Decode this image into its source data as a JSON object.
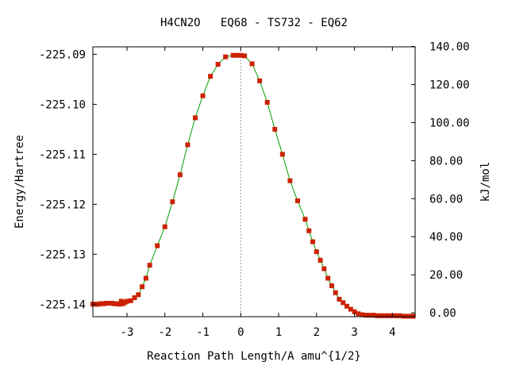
{
  "chart_data": {
    "type": "scatter",
    "title": "H4CN2O   EQ68 - TS732 - EQ62",
    "xlabel": "Reaction Path Length/A amu^{1/2}",
    "ylabel": "Energy/Hartree",
    "y2label": "kJ/mol",
    "xlim": [
      -3.9,
      4.6
    ],
    "ylim": [
      -225.1425,
      -225.0885
    ],
    "y2lim": [
      -2.05,
      139.8
    ],
    "x_ticks": [
      -3,
      -2,
      -1,
      0,
      1,
      2,
      3,
      4
    ],
    "x_tick_labels": [
      "-3",
      "-2",
      "-1",
      "0",
      "1",
      "2",
      "3",
      "4"
    ],
    "y_ticks": [
      -225.09,
      -225.1,
      -225.11,
      -225.12,
      -225.13,
      -225.14
    ],
    "y_tick_labels": [
      "-225.09",
      "-225.10",
      "-225.11",
      "-225.12",
      "-225.13",
      "-225.14"
    ],
    "y2_ticks": [
      0,
      20,
      40,
      60,
      80,
      100,
      120,
      140
    ],
    "y2_tick_labels": [
      "0.00",
      "20.00",
      "40.00",
      "60.00",
      "80.00",
      "100.00",
      "120.00",
      "140.00"
    ],
    "ts_x": 0,
    "grid": false,
    "colors": {
      "line": "#00a000",
      "points": "#cc2200",
      "ts_line": "#999999"
    },
    "series": [
      {
        "x": [
          -3.9,
          -3.85,
          -3.8,
          -3.75,
          -3.7,
          -3.65,
          -3.6,
          -3.55,
          -3.5,
          -3.45,
          -3.4,
          -3.35,
          -3.3,
          -3.25,
          -3.2,
          -3.15,
          -3.1,
          -3.05,
          -3.0,
          -2.9,
          -2.8,
          -2.7,
          -2.6,
          -2.5,
          -2.4,
          -2.2,
          -2.0,
          -1.8,
          -1.6,
          -1.4,
          -1.2,
          -1.0,
          -0.8,
          -0.6,
          -0.4,
          -0.2,
          -0.1,
          0.0,
          0.1,
          0.3,
          0.5,
          0.7,
          0.9,
          1.1,
          1.3,
          1.5,
          1.7,
          1.8,
          1.9,
          2.0,
          2.1,
          2.2,
          2.3,
          2.4,
          2.5,
          2.6,
          2.7,
          2.8,
          2.9,
          3.0,
          3.1,
          3.2,
          3.3,
          3.4,
          3.5,
          3.6,
          3.7,
          3.8,
          3.9,
          4.0,
          4.1,
          4.2,
          4.3,
          4.4,
          4.5,
          4.55
        ],
        "y": [
          -225.14,
          -225.14,
          -225.14,
          -225.14,
          -225.1399,
          -225.1399,
          -225.1399,
          -225.1398,
          -225.1398,
          -225.1398,
          -225.1398,
          -225.1399,
          -225.1399,
          -225.1399,
          -225.14,
          -225.1394,
          -225.1399,
          -225.1396,
          -225.1394,
          -225.1393,
          -225.1387,
          -225.1381,
          -225.1365,
          -225.1348,
          -225.1322,
          -225.1283,
          -225.1245,
          -225.1195,
          -225.1141,
          -225.1081,
          -225.1027,
          -225.0983,
          -225.0944,
          -225.092,
          -225.0905,
          -225.0902,
          -225.0902,
          -225.0902,
          -225.0903,
          -225.0919,
          -225.0953,
          -225.0996,
          -225.105,
          -225.11,
          -225.1153,
          -225.1193,
          -225.123,
          -225.1253,
          -225.1275,
          -225.1295,
          -225.1312,
          -225.1329,
          -225.1348,
          -225.1363,
          -225.1377,
          -225.139,
          -225.1397,
          -225.1404,
          -225.141,
          -225.1415,
          -225.1419,
          -225.1421,
          -225.1422,
          -225.1422,
          -225.1422,
          -225.1423,
          -225.1423,
          -225.1423,
          -225.1423,
          -225.1423,
          -225.1423,
          -225.1423,
          -225.1424,
          -225.1424,
          -225.1424,
          -225.1424
        ]
      }
    ]
  }
}
